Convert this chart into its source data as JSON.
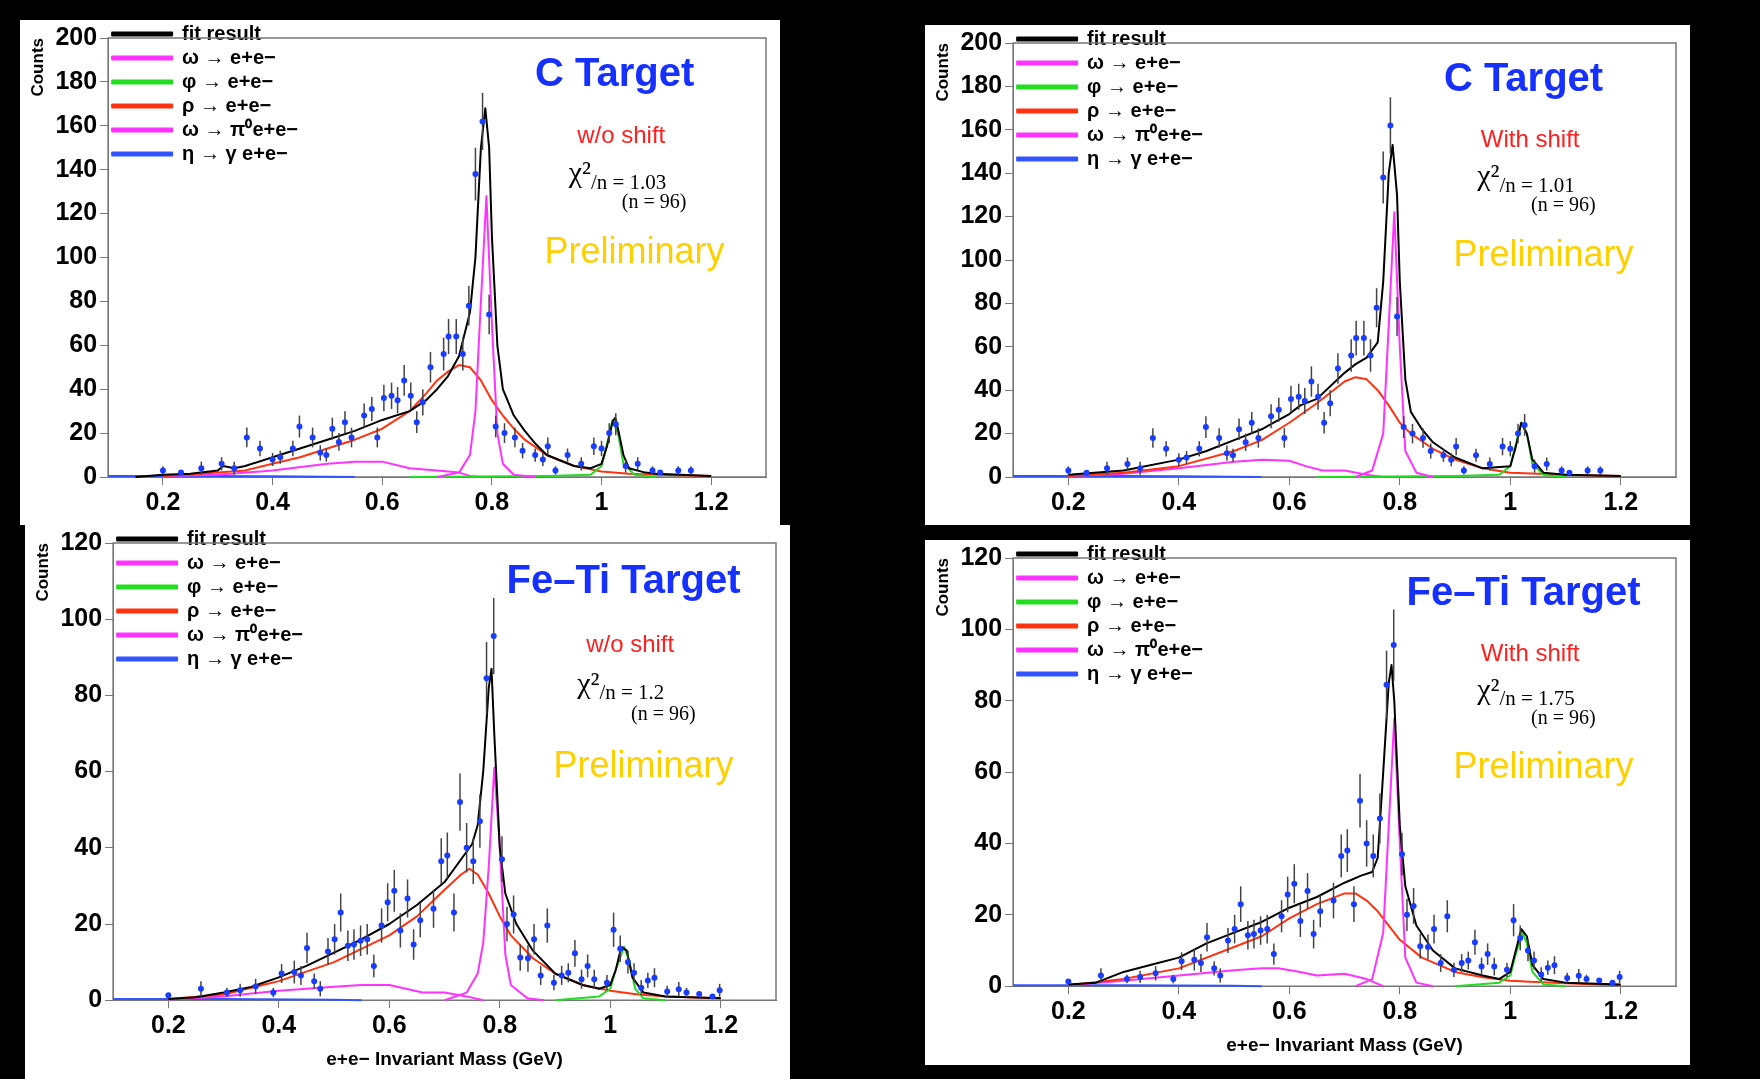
{
  "chart_data": [
    {
      "type": "line",
      "ylabel": "Counts",
      "xlim": [
        0.1,
        1.3
      ],
      "xticks": [
        0.2,
        0.4,
        0.6,
        0.8,
        1,
        1.2
      ],
      "ylim": [
        0,
        200
      ],
      "yticks": [
        0,
        20,
        40,
        60,
        80,
        100,
        120,
        140,
        160,
        180,
        200
      ],
      "legend": "top left",
      "annotations": [
        "C Target",
        "w/o shift",
        "χ²$_{/n = 1.03}$",
        "(n = 96)",
        "Preliminary"
      ],
      "series": [
        {
          "name": "fit result",
          "type": "line",
          "color": "#000000",
          "x": [
            0.15,
            0.2,
            0.25,
            0.3,
            0.31,
            0.33,
            0.35,
            0.4,
            0.45,
            0.5,
            0.55,
            0.6,
            0.65,
            0.68,
            0.7,
            0.72,
            0.74,
            0.76,
            0.77,
            0.78,
            0.788,
            0.795,
            0.8,
            0.81,
            0.82,
            0.84,
            0.86,
            0.88,
            0.9,
            0.95,
            0.98,
            1.0,
            1.01,
            1.02,
            1.025,
            1.03,
            1.04,
            1.05,
            1.08,
            1.1,
            1.2
          ],
          "values": [
            0,
            1,
            1.5,
            3,
            5,
            4,
            5,
            9,
            13,
            17,
            21,
            26,
            30,
            35,
            40,
            46,
            55,
            75,
            100,
            150,
            168,
            150,
            110,
            60,
            40,
            28,
            21,
            15,
            10,
            5,
            4,
            6,
            14,
            25,
            27,
            22,
            10,
            4,
            2,
            1.5,
            0.5
          ]
        },
        {
          "name": "ω → e+e−",
          "type": "line",
          "color": "#ff33ff",
          "x": [
            0.7,
            0.74,
            0.76,
            0.77,
            0.78,
            0.79,
            0.8,
            0.81,
            0.82,
            0.84,
            0.88
          ],
          "values": [
            0,
            2,
            10,
            30,
            80,
            128,
            70,
            20,
            6,
            1,
            0
          ]
        },
        {
          "name": "φ → e+e−",
          "type": "line",
          "color": "#22dd22",
          "x": [
            0.65,
            0.9,
            0.98,
            1.0,
            1.01,
            1.02,
            1.03,
            1.04,
            1.06,
            1.1
          ],
          "values": [
            0,
            0.5,
            1,
            5,
            15,
            26,
            20,
            6,
            1,
            0
          ]
        },
        {
          "name": "ρ → e+e−",
          "type": "line",
          "color": "#ff3311",
          "x": [
            0.2,
            0.3,
            0.35,
            0.4,
            0.45,
            0.5,
            0.55,
            0.6,
            0.65,
            0.68,
            0.7,
            0.72,
            0.74,
            0.76,
            0.78,
            0.8,
            0.82,
            0.84,
            0.86,
            0.9,
            0.95,
            1.0,
            1.05,
            1.1,
            1.2
          ],
          "values": [
            0.5,
            2,
            3,
            6,
            9,
            13,
            17,
            22,
            30,
            38,
            44,
            48,
            51,
            50,
            44,
            35,
            28,
            22,
            17,
            10,
            5,
            2.5,
            1.5,
            1,
            0.5
          ]
        },
        {
          "name": "ω → π⁰e+e−",
          "type": "line",
          "color": "#ff33ff",
          "x": [
            0.2,
            0.3,
            0.4,
            0.5,
            0.55,
            0.6,
            0.65,
            0.7,
            0.74,
            0.76,
            0.78
          ],
          "values": [
            0.5,
            1,
            3,
            6,
            7,
            7,
            4,
            3,
            2,
            0.5,
            0
          ]
        },
        {
          "name": "η → γ e+e−",
          "type": "line",
          "color": "#3355ff",
          "x": [
            0.1,
            0.2,
            0.3,
            0.4,
            0.5,
            0.55
          ],
          "values": [
            0.5,
            0.5,
            0.5,
            0.3,
            0.1,
            0
          ]
        },
        {
          "type": "scatter",
          "color": "#1a3cff",
          "x": [
            0.2,
            0.233,
            0.27,
            0.307,
            0.33,
            0.353,
            0.377,
            0.4,
            0.414,
            0.437,
            0.449,
            0.473,
            0.487,
            0.498,
            0.509,
            0.521,
            0.532,
            0.544,
            0.567,
            0.581,
            0.591,
            0.603,
            0.617,
            0.628,
            0.64,
            0.652,
            0.663,
            0.674,
            0.688,
            0.712,
            0.721,
            0.735,
            0.747,
            0.758,
            0.77,
            0.783,
            0.795,
            0.807,
            0.823,
            0.842,
            0.856,
            0.879,
            0.893,
            0.902,
            0.916,
            0.938,
            0.963,
            0.986,
            1.0,
            1.014,
            1.026,
            1.044,
            1.066,
            1.093,
            1.107,
            1.14,
            1.163
          ],
          "values": [
            3,
            2,
            4,
            6,
            4,
            18,
            13,
            8,
            9,
            13,
            23,
            18,
            11,
            10,
            22,
            16,
            25,
            18,
            28,
            31,
            18,
            36,
            37,
            35,
            44,
            37,
            25,
            34,
            50,
            56,
            64,
            64,
            56,
            78,
            138,
            162,
            74,
            23,
            20,
            18,
            12,
            10,
            8,
            14,
            3,
            10,
            6,
            14,
            13,
            20,
            24,
            5,
            6,
            3,
            2,
            3,
            3
          ],
          "errors": [
            1.9,
            null,
            3,
            3,
            3,
            4.5,
            3.5,
            3,
            3,
            3.5,
            5,
            4.5,
            3.5,
            3,
            5,
            4,
            5,
            4.5,
            5.5,
            5.5,
            4.5,
            6,
            6,
            6,
            7,
            6,
            5,
            6,
            7,
            7.5,
            8,
            8,
            7.5,
            9,
            12,
            13,
            9,
            5,
            4.5,
            4.5,
            3.5,
            3,
            3,
            4,
            1.9,
            3,
            3,
            4,
            3.5,
            4.5,
            5,
            3,
            3,
            1.9,
            null,
            1.9,
            1.9
          ]
        }
      ]
    },
    {
      "type": "line",
      "ylabel": "Counts",
      "xlim": [
        0.1,
        1.3
      ],
      "xticks": [
        0.2,
        0.4,
        0.6,
        0.8,
        1,
        1.2
      ],
      "ylim": [
        0,
        200
      ],
      "yticks": [
        0,
        20,
        40,
        60,
        80,
        100,
        120,
        140,
        160,
        180,
        200
      ],
      "legend": "top left",
      "annotations": [
        "C Target",
        "With shift",
        "χ²$_{/n = 1.01}$",
        "(n = 96)",
        "Preliminary"
      ],
      "series": [
        {
          "name": "fit result",
          "type": "line",
          "color": "#000000",
          "x": [
            0.2,
            0.3,
            0.4,
            0.45,
            0.5,
            0.55,
            0.6,
            0.62,
            0.65,
            0.7,
            0.72,
            0.74,
            0.76,
            0.77,
            0.78,
            0.787,
            0.795,
            0.8,
            0.81,
            0.82,
            0.84,
            0.86,
            0.9,
            0.95,
            1.0,
            1.01,
            1.02,
            1.03,
            1.04,
            1.06,
            1.1,
            1.2
          ],
          "values": [
            1,
            3,
            8,
            12,
            17,
            22,
            29,
            33,
            36,
            48,
            52,
            55,
            62,
            90,
            140,
            153,
            130,
            90,
            45,
            30,
            22,
            16,
            9,
            4,
            5,
            14,
            25,
            20,
            8,
            2,
            1,
            0.5
          ]
        },
        {
          "name": "ω → e+e−",
          "type": "line",
          "color": "#ff33ff",
          "x": [
            0.72,
            0.75,
            0.77,
            0.78,
            0.79,
            0.8,
            0.81,
            0.83,
            0.86
          ],
          "values": [
            0,
            3,
            20,
            70,
            122,
            60,
            12,
            2,
            0
          ]
        },
        {
          "name": "φ → e+e−",
          "type": "line",
          "color": "#22dd22",
          "x": [
            0.65,
            0.9,
            0.98,
            1.0,
            1.01,
            1.02,
            1.03,
            1.04,
            1.06,
            1.1
          ],
          "values": [
            0,
            0.5,
            1,
            5,
            15,
            25,
            20,
            6,
            1,
            0
          ]
        },
        {
          "name": "ρ → e+e−",
          "type": "line",
          "color": "#ff3311",
          "x": [
            0.2,
            0.3,
            0.4,
            0.5,
            0.55,
            0.6,
            0.65,
            0.7,
            0.72,
            0.74,
            0.76,
            0.78,
            0.8,
            0.82,
            0.86,
            0.9,
            0.95,
            1.0,
            1.1,
            1.2
          ],
          "values": [
            0.5,
            2,
            5,
            12,
            17,
            25,
            34,
            44,
            46,
            45,
            40,
            33,
            25,
            20,
            13,
            8,
            4,
            2,
            1,
            0.5
          ]
        },
        {
          "name": "ω → π⁰e+e−",
          "type": "line",
          "color": "#ff33ff",
          "x": [
            0.2,
            0.3,
            0.4,
            0.5,
            0.55,
            0.6,
            0.63,
            0.66,
            0.7,
            0.74,
            0.77
          ],
          "values": [
            0.5,
            1.5,
            4,
            7,
            8,
            7.5,
            5,
            3,
            3,
            1,
            0
          ]
        },
        {
          "name": "η → γ e+e−",
          "type": "line",
          "color": "#3355ff",
          "x": [
            0.1,
            0.2,
            0.3,
            0.4,
            0.5,
            0.55
          ],
          "values": [
            0.5,
            0.5,
            0.5,
            0.3,
            0.1,
            0
          ]
        },
        {
          "type": "scatter",
          "color": "#1a3cff",
          "x": [
            0.2,
            0.233,
            0.27,
            0.307,
            0.33,
            0.353,
            0.377,
            0.4,
            0.414,
            0.437,
            0.449,
            0.473,
            0.487,
            0.498,
            0.509,
            0.521,
            0.532,
            0.544,
            0.567,
            0.581,
            0.591,
            0.603,
            0.617,
            0.628,
            0.64,
            0.652,
            0.663,
            0.674,
            0.688,
            0.712,
            0.721,
            0.735,
            0.747,
            0.758,
            0.77,
            0.783,
            0.795,
            0.807,
            0.823,
            0.842,
            0.856,
            0.879,
            0.893,
            0.902,
            0.916,
            0.938,
            0.963,
            0.986,
            1.0,
            1.014,
            1.026,
            1.044,
            1.066,
            1.093,
            1.107,
            1.14,
            1.163
          ],
          "values": [
            3,
            2,
            4,
            6,
            4,
            18,
            13,
            8,
            9,
            13,
            23,
            18,
            11,
            10,
            22,
            16,
            25,
            18,
            28,
            31,
            18,
            36,
            37,
            35,
            44,
            37,
            25,
            34,
            50,
            56,
            64,
            64,
            56,
            78,
            138,
            162,
            74,
            23,
            20,
            18,
            12,
            10,
            8,
            14,
            3,
            10,
            6,
            14,
            13,
            20,
            24,
            5,
            6,
            3,
            2,
            3,
            3
          ],
          "errors": [
            1.9,
            null,
            3,
            3,
            3,
            4.5,
            3.5,
            3,
            3,
            3.5,
            5,
            4.5,
            3.5,
            3,
            5,
            4,
            5,
            4.5,
            5.5,
            5.5,
            4.5,
            6,
            6,
            6,
            7,
            6,
            5,
            6,
            7,
            7.5,
            8,
            8,
            7.5,
            9,
            12,
            13,
            9,
            5,
            4.5,
            4.5,
            3.5,
            3,
            3,
            4,
            1.9,
            3,
            3,
            4,
            3.5,
            4.5,
            5,
            3,
            3,
            1.9,
            null,
            1.9,
            1.9
          ]
        }
      ]
    },
    {
      "type": "line",
      "ylabel": "Counts",
      "xlabel": "e+e− Invariant Mass (GeV)",
      "xlim": [
        0.1,
        1.3
      ],
      "xticks": [
        0.2,
        0.4,
        0.6,
        0.8,
        1,
        1.2
      ],
      "ylim": [
        0,
        120
      ],
      "yticks": [
        0,
        20,
        40,
        60,
        80,
        100,
        120
      ],
      "legend": "top left",
      "annotations": [
        "Fe–Ti Target",
        "w/o shift",
        "χ²$_{/n = 1.2}$",
        "(n = 96)",
        "Preliminary"
      ],
      "series": [
        {
          "name": "fit result",
          "type": "line",
          "color": "#000000",
          "x": [
            0.2,
            0.25,
            0.3,
            0.35,
            0.4,
            0.45,
            0.5,
            0.55,
            0.6,
            0.65,
            0.7,
            0.73,
            0.75,
            0.76,
            0.77,
            0.78,
            0.785,
            0.79,
            0.8,
            0.81,
            0.83,
            0.86,
            0.9,
            0.95,
            0.98,
            1.0,
            1.01,
            1.02,
            1.03,
            1.04,
            1.06,
            1.1,
            1.2
          ],
          "values": [
            0.3,
            0.8,
            2,
            3.5,
            6,
            9,
            12.5,
            16,
            20,
            25,
            31,
            37,
            41,
            46,
            60,
            82,
            87,
            70,
            40,
            28,
            20,
            13,
            7,
            4,
            3,
            4,
            8,
            14,
            13,
            6,
            2,
            1,
            0.5
          ]
        },
        {
          "name": "ω → e+e−",
          "type": "line",
          "color": "#ff33ff",
          "x": [
            0.7,
            0.74,
            0.76,
            0.77,
            0.78,
            0.79,
            0.8,
            0.81,
            0.82,
            0.85,
            0.88
          ],
          "values": [
            0,
            2,
            7,
            15,
            35,
            61,
            40,
            12,
            4,
            0.5,
            0
          ]
        },
        {
          "name": "φ → e+e−",
          "type": "line",
          "color": "#22dd22",
          "x": [
            0.9,
            0.98,
            1.0,
            1.01,
            1.025,
            1.035,
            1.045,
            1.06,
            1.1
          ],
          "values": [
            0,
            1,
            3,
            8,
            14,
            10,
            3,
            0.5,
            0
          ]
        },
        {
          "name": "ρ → e+e−",
          "type": "line",
          "color": "#ff3311",
          "x": [
            0.2,
            0.3,
            0.4,
            0.5,
            0.6,
            0.65,
            0.7,
            0.73,
            0.745,
            0.76,
            0.78,
            0.8,
            0.82,
            0.86,
            0.9,
            0.95,
            1.0,
            1.05,
            1.1,
            1.2
          ],
          "values": [
            0.3,
            1.5,
            5,
            10,
            17,
            22,
            29,
            33,
            34.5,
            33,
            28,
            22,
            17,
            11,
            7,
            4,
            2.5,
            1.5,
            1,
            0.5
          ]
        },
        {
          "name": "ω → π⁰e+e−",
          "type": "line",
          "color": "#ff33ff",
          "x": [
            0.2,
            0.3,
            0.4,
            0.5,
            0.55,
            0.6,
            0.63,
            0.66,
            0.7,
            0.74,
            0.77
          ],
          "values": [
            0.2,
            1,
            2.5,
            3.5,
            4,
            4,
            3,
            2,
            2,
            1,
            0
          ]
        },
        {
          "name": "η → γ e+e−",
          "type": "line",
          "color": "#3355ff",
          "x": [
            0.1,
            0.3,
            0.5,
            0.55
          ],
          "values": [
            0.3,
            0.3,
            0.1,
            0
          ]
        },
        {
          "type": "scatter",
          "color": "#1a3cff",
          "x": [
            0.2,
            0.259,
            0.306,
            0.33,
            0.358,
            0.39,
            0.405,
            0.428,
            0.44,
            0.451,
            0.464,
            0.475,
            0.489,
            0.501,
            0.512,
            0.525,
            0.536,
            0.548,
            0.56,
            0.572,
            0.586,
            0.597,
            0.609,
            0.62,
            0.633,
            0.644,
            0.656,
            0.68,
            0.694,
            0.705,
            0.717,
            0.728,
            0.74,
            0.752,
            0.764,
            0.776,
            0.789,
            0.804,
            0.813,
            0.825,
            0.837,
            0.851,
            0.862,
            0.874,
            0.886,
            0.898,
            0.912,
            0.924,
            0.936,
            0.948,
            0.959,
            0.971,
            0.994,
            1.006,
            1.018,
            1.032,
            1.043,
            1.056,
            1.068,
            1.08,
            1.103,
            1.124,
            1.138,
            1.161,
            1.185,
            1.198
          ],
          "values": [
            1.3,
            3,
            2,
            2.6,
            3.6,
            2,
            7,
            7.4,
            6.5,
            13.7,
            5,
            3,
            12.8,
            16,
            23,
            14.3,
            14.6,
            15.6,
            16,
            9,
            19.6,
            25.7,
            28.7,
            18.3,
            26.7,
            14.6,
            21,
            24,
            36.5,
            38,
            23,
            52,
            40,
            36.5,
            47,
            84.5,
            95.6,
            37,
            20,
            22.5,
            11.2,
            11,
            16,
            6.5,
            19.6,
            4.6,
            6.5,
            7.2,
            12.3,
            5.5,
            9,
            5.5,
            4.6,
            18.5,
            13.5,
            10,
            7.2,
            3.3,
            5.2,
            5.9,
            2.3,
            2.9,
            2,
            1.6,
            1,
            2.6
          ],
          "errors": [
            null,
            2,
            1.2,
            1.7,
            2,
            1.2,
            2.5,
            3,
            2.5,
            4,
            2,
            2,
            3.5,
            4,
            5,
            4,
            4,
            4,
            4,
            3,
            4.5,
            5,
            5.5,
            4.5,
            5,
            4,
            4.5,
            5,
            6,
            6,
            5,
            7.5,
            6.5,
            6,
            7,
            9.5,
            10,
            6,
            4.5,
            5,
            3.5,
            3.5,
            4,
            2.5,
            4.5,
            2,
            2.5,
            2.5,
            3.5,
            2.5,
            3,
            2.5,
            2,
            4.5,
            3.5,
            3,
            2.5,
            2,
            2,
            2.5,
            1.5,
            1.9,
            1.2,
            null,
            null,
            1.7
          ]
        }
      ]
    },
    {
      "type": "line",
      "ylabel": "Counts",
      "xlabel": "e+e− Invariant Mass (GeV)",
      "xlim": [
        0.1,
        1.3
      ],
      "xticks": [
        0.2,
        0.4,
        0.6,
        0.8,
        1,
        1.2
      ],
      "ylim": [
        0,
        120
      ],
      "yticks": [
        0,
        20,
        40,
        60,
        80,
        100,
        120
      ],
      "legend": "top left",
      "annotations": [
        "Fe–Ti Target",
        "With shift",
        "χ²$_{/n = 1.75}$",
        "(n = 96)",
        "Preliminary"
      ],
      "series": [
        {
          "name": "fit result",
          "type": "line",
          "color": "#000000",
          "x": [
            0.2,
            0.25,
            0.3,
            0.35,
            0.4,
            0.45,
            0.5,
            0.55,
            0.6,
            0.65,
            0.7,
            0.73,
            0.75,
            0.76,
            0.77,
            0.78,
            0.785,
            0.79,
            0.8,
            0.81,
            0.83,
            0.86,
            0.9,
            0.95,
            0.98,
            1.0,
            1.01,
            1.02,
            1.03,
            1.04,
            1.06,
            1.1,
            1.2
          ],
          "values": [
            0.5,
            1,
            4,
            6,
            8,
            12,
            15,
            18,
            22,
            25,
            29,
            31,
            32,
            36,
            60,
            85,
            90,
            80,
            45,
            28,
            17,
            10,
            5,
            3,
            2,
            4,
            10,
            16,
            14,
            6,
            2,
            1,
            0.5
          ]
        },
        {
          "name": "ω → e+e−",
          "type": "line",
          "color": "#ff33ff",
          "x": [
            0.72,
            0.75,
            0.77,
            0.78,
            0.79,
            0.8,
            0.81,
            0.83,
            0.86
          ],
          "values": [
            0,
            2,
            15,
            45,
            75,
            40,
            8,
            1,
            0
          ]
        },
        {
          "name": "φ → e+e−",
          "type": "line",
          "color": "#22dd22",
          "x": [
            0.9,
            0.98,
            1.0,
            1.01,
            1.022,
            1.03,
            1.04,
            1.06,
            1.1
          ],
          "values": [
            0,
            1,
            3,
            9,
            15,
            12,
            4,
            0.5,
            0
          ]
        },
        {
          "name": "ρ → e+e−",
          "type": "line",
          "color": "#ff3311",
          "x": [
            0.2,
            0.3,
            0.4,
            0.5,
            0.55,
            0.6,
            0.65,
            0.7,
            0.72,
            0.74,
            0.76,
            0.78,
            0.8,
            0.84,
            0.9,
            0.95,
            1.0,
            1.1,
            1.2
          ],
          "values": [
            0.3,
            2,
            5,
            11,
            14,
            19,
            23,
            26,
            26,
            24,
            21,
            17,
            13,
            8,
            4,
            2.5,
            1.5,
            0.8,
            0.3
          ]
        },
        {
          "name": "ω → π⁰e+e−",
          "type": "line",
          "color": "#ff33ff",
          "x": [
            0.2,
            0.3,
            0.4,
            0.5,
            0.55,
            0.58,
            0.62,
            0.65,
            0.7,
            0.74,
            0.77
          ],
          "values": [
            0.3,
            1.5,
            3,
            4.5,
            5,
            5,
            4,
            3,
            3.5,
            2,
            0
          ]
        },
        {
          "name": "η → γ e+e−",
          "type": "line",
          "color": "#3355ff",
          "x": [
            0.1,
            0.3,
            0.5,
            0.55
          ],
          "values": [
            0.3,
            0.3,
            0.1,
            0
          ]
        },
        {
          "type": "scatter",
          "color": "#1a3cff",
          "x": [
            0.2,
            0.259,
            0.306,
            0.33,
            0.358,
            0.39,
            0.405,
            0.428,
            0.44,
            0.451,
            0.464,
            0.475,
            0.489,
            0.501,
            0.512,
            0.525,
            0.536,
            0.548,
            0.56,
            0.572,
            0.586,
            0.597,
            0.609,
            0.62,
            0.633,
            0.644,
            0.656,
            0.68,
            0.694,
            0.705,
            0.717,
            0.728,
            0.74,
            0.752,
            0.764,
            0.776,
            0.789,
            0.804,
            0.813,
            0.825,
            0.837,
            0.851,
            0.862,
            0.874,
            0.886,
            0.898,
            0.912,
            0.924,
            0.936,
            0.948,
            0.959,
            0.971,
            0.994,
            1.006,
            1.018,
            1.032,
            1.043,
            1.056,
            1.068,
            1.08,
            1.103,
            1.124,
            1.138,
            1.161,
            1.185,
            1.198
          ],
          "values": [
            1.3,
            3,
            2,
            2.6,
            3.6,
            2,
            7,
            7.4,
            6.5,
            13.7,
            5,
            3,
            12.8,
            16,
            23,
            14.3,
            14.6,
            15.6,
            16,
            9,
            19.6,
            25.7,
            28.7,
            18.3,
            26.7,
            14.6,
            21,
            24,
            36.5,
            38,
            23,
            52,
            40,
            36.5,
            47,
            84.5,
            95.6,
            37,
            20,
            22.5,
            11.2,
            11,
            16,
            6.5,
            19.6,
            4.6,
            6.5,
            7.2,
            12.3,
            5.5,
            9,
            5.5,
            4.6,
            18.5,
            13.5,
            10,
            7.2,
            3.3,
            5.2,
            5.9,
            2.3,
            2.9,
            2,
            1.6,
            1,
            2.6
          ],
          "errors": [
            null,
            2,
            1.2,
            1.7,
            2,
            1.2,
            2.5,
            3,
            2.5,
            4,
            2,
            2,
            3.5,
            4,
            5,
            4,
            4,
            4,
            4,
            3,
            4.5,
            5,
            5.5,
            4.5,
            5,
            4,
            4.5,
            5,
            6,
            6,
            5,
            7.5,
            6.5,
            6,
            7,
            9.5,
            10,
            6,
            4.5,
            5,
            3.5,
            3.5,
            4,
            2.5,
            4.5,
            2,
            2.5,
            2.5,
            3.5,
            2.5,
            3,
            2.5,
            2,
            4.5,
            3.5,
            3,
            2.5,
            2,
            2,
            2.5,
            1.5,
            1.9,
            1.2,
            null,
            null,
            1.7
          ]
        }
      ]
    }
  ]
}
